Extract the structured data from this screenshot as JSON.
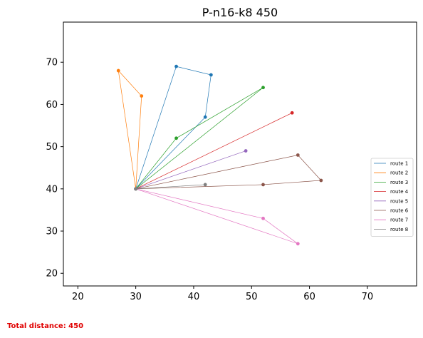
{
  "chart_data": {
    "type": "line",
    "title": "P-n16-k8 450",
    "xlim": [
      17.5,
      78.5
    ],
    "ylim": [
      17,
      79.5
    ],
    "xticks": [
      20,
      30,
      40,
      50,
      60,
      70
    ],
    "yticks": [
      20,
      30,
      40,
      50,
      60,
      70
    ],
    "grid": false,
    "legend_position": "right",
    "depot": [
      30,
      40
    ],
    "series": [
      {
        "name": "route 1",
        "color": "#1f77b4",
        "points": [
          [
            30,
            40
          ],
          [
            42,
            57
          ],
          [
            43,
            67
          ],
          [
            37,
            69
          ],
          [
            30,
            40
          ]
        ]
      },
      {
        "name": "route 2",
        "color": "#ff7f0e",
        "points": [
          [
            30,
            40
          ],
          [
            31,
            62
          ],
          [
            27,
            68
          ],
          [
            30,
            40
          ]
        ]
      },
      {
        "name": "route 3",
        "color": "#2ca02c",
        "points": [
          [
            30,
            40
          ],
          [
            37,
            52
          ],
          [
            52,
            64
          ],
          [
            30,
            40
          ]
        ]
      },
      {
        "name": "route 4",
        "color": "#d62728",
        "points": [
          [
            30,
            40
          ],
          [
            57,
            58
          ],
          [
            30,
            40
          ]
        ]
      },
      {
        "name": "route 5",
        "color": "#9467bd",
        "points": [
          [
            30,
            40
          ],
          [
            49,
            49
          ],
          [
            30,
            40
          ]
        ]
      },
      {
        "name": "route 6",
        "color": "#8c564b",
        "points": [
          [
            30,
            40
          ],
          [
            52,
            41
          ],
          [
            62,
            42
          ],
          [
            58,
            48
          ],
          [
            30,
            40
          ]
        ]
      },
      {
        "name": "route 7",
        "color": "#e377c2",
        "points": [
          [
            30,
            40
          ],
          [
            52,
            33
          ],
          [
            58,
            27
          ],
          [
            30,
            40
          ]
        ]
      },
      {
        "name": "route 8",
        "color": "#7f7f7f",
        "points": [
          [
            30,
            40
          ],
          [
            42,
            41
          ],
          [
            30,
            40
          ]
        ]
      }
    ]
  },
  "footer": {
    "text": "Total distance: 450"
  }
}
